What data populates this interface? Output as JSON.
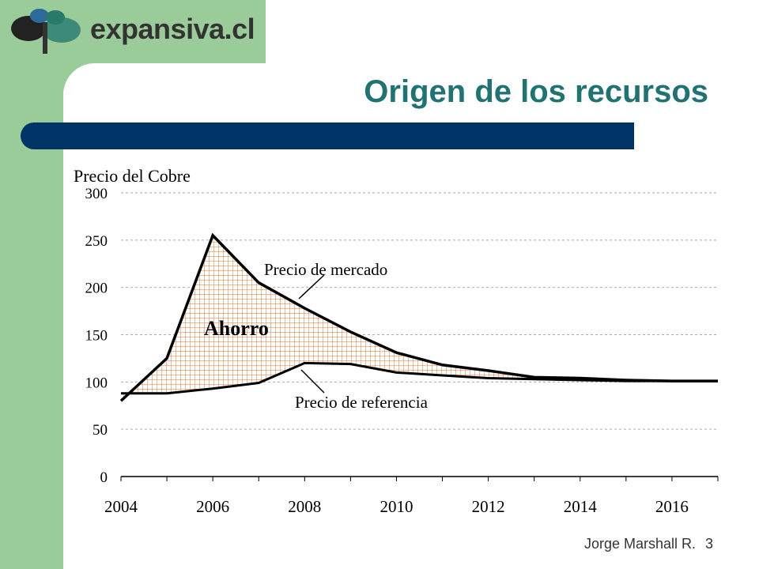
{
  "slide": {
    "logo_text": "expansiva.cl",
    "title": "Origen de los recursos",
    "author": "Jorge Marshall R.",
    "page_number": "3"
  },
  "colors": {
    "green_band": "#99cc99",
    "title_text": "#1f7373",
    "header_bar": "#003366",
    "fill_hatch": "#e0762c"
  },
  "chart_data": {
    "type": "area",
    "title": "Precio del Cobre",
    "ylim": [
      0,
      300
    ],
    "xlim": [
      2004,
      2017
    ],
    "yticks": [
      0,
      50,
      100,
      150,
      200,
      250,
      300
    ],
    "xticks": [
      2004,
      2006,
      2008,
      2010,
      2012,
      2014,
      2016
    ],
    "grid": "horizontal dashed",
    "series": [
      {
        "name": "Precio de mercado",
        "x": [
          2004,
          2005,
          2006,
          2007,
          2008,
          2009,
          2010,
          2011,
          2012,
          2013,
          2014,
          2015,
          2016,
          2017
        ],
        "values": [
          80,
          125,
          255,
          205,
          178,
          153,
          131,
          118,
          112,
          105,
          104,
          102,
          101,
          101
        ]
      },
      {
        "name": "Precio de referencia",
        "x": [
          2004,
          2005,
          2006,
          2007,
          2008,
          2009,
          2010,
          2011,
          2012,
          2013,
          2014,
          2015,
          2016,
          2017
        ],
        "values": [
          88,
          88,
          93,
          99,
          120,
          119,
          110,
          107,
          104,
          103,
          102,
          101,
          101,
          101
        ]
      }
    ],
    "area_label": "Ahorro",
    "annotations": [
      "Precio de mercado",
      "Precio de referencia"
    ]
  }
}
